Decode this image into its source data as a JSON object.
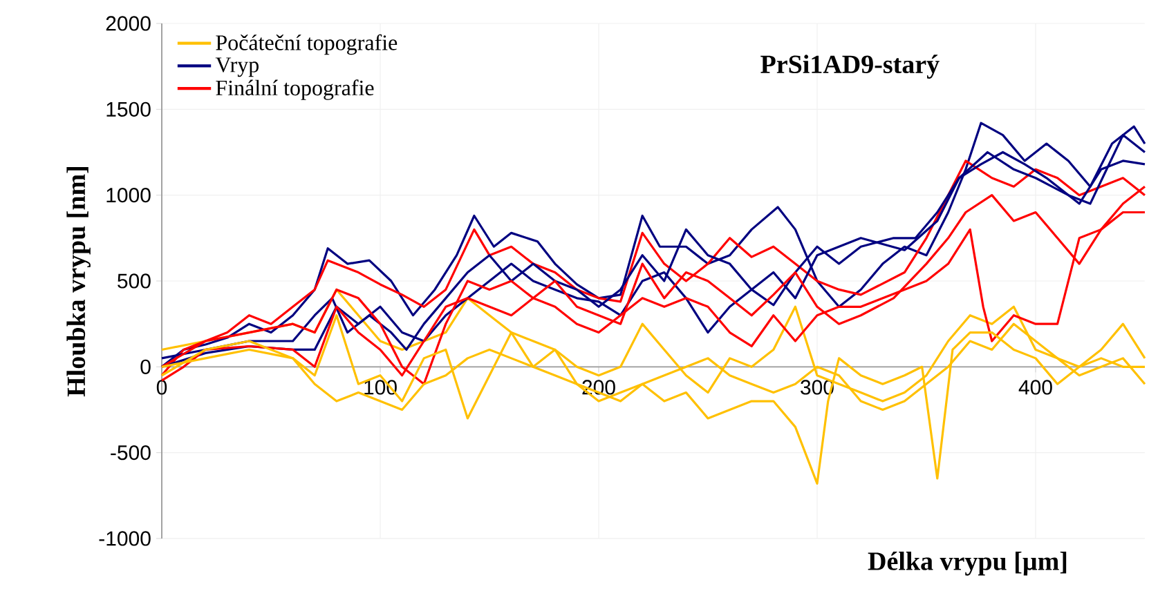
{
  "chart_data": {
    "type": "line",
    "title": "PrSi1AD9-starý",
    "xlabel": "Délka vrypu [µm]",
    "ylabel": "Hloubka vrypu [nm]",
    "xlim": [
      0,
      450
    ],
    "ylim": [
      -1000,
      2000
    ],
    "xticks": [
      0,
      100,
      200,
      300,
      400
    ],
    "yticks": [
      -1000,
      -500,
      0,
      500,
      1000,
      1500,
      2000
    ],
    "grid": true,
    "legend": "top left",
    "marker": "none",
    "line_style": "solid",
    "series": [
      {
        "name": "Počáteční topografie",
        "color": "#ffc000",
        "x": [
          0,
          20,
          40,
          60,
          70,
          80,
          90,
          100,
          110,
          120,
          130,
          140,
          150,
          160,
          170,
          180,
          190,
          200,
          210,
          220,
          230,
          240,
          250,
          260,
          270,
          280,
          290,
          300,
          310,
          320,
          330,
          340,
          350,
          360,
          370,
          380,
          390,
          400,
          410,
          420,
          430,
          440,
          450
        ],
        "values": [
          100,
          150,
          200,
          250,
          200,
          450,
          300,
          150,
          100,
          150,
          200,
          400,
          300,
          200,
          150,
          100,
          0,
          -50,
          0,
          250,
          100,
          -50,
          -150,
          50,
          0,
          100,
          350,
          -50,
          -100,
          -150,
          -200,
          -150,
          -50,
          150,
          300,
          250,
          350,
          100,
          50,
          0,
          100,
          250,
          50
        ]
      },
      {
        "name": "Vryp",
        "color": "#000080",
        "x": [
          0,
          10,
          20,
          30,
          40,
          50,
          60,
          70,
          76,
          85,
          95,
          105,
          115,
          125,
          135,
          143,
          152,
          160,
          172,
          180,
          190,
          200,
          210,
          220,
          228,
          240,
          250,
          260,
          270,
          282,
          290,
          300,
          310,
          320,
          330,
          340,
          350,
          360,
          368,
          375,
          385,
          395,
          405,
          415,
          425,
          435,
          445,
          450
        ],
        "values": [
          0,
          100,
          130,
          170,
          250,
          200,
          300,
          450,
          690,
          600,
          620,
          500,
          300,
          450,
          650,
          880,
          700,
          780,
          730,
          600,
          480,
          400,
          420,
          880,
          700,
          700,
          600,
          650,
          800,
          930,
          800,
          500,
          350,
          450,
          600,
          700,
          650,
          900,
          1150,
          1420,
          1350,
          1200,
          1300,
          1200,
          1050,
          1300,
          1400,
          1300
        ]
      },
      {
        "name": "Finální topografie",
        "color": "#ff0000",
        "x": [
          0,
          10,
          20,
          30,
          40,
          50,
          60,
          70,
          76,
          90,
          100,
          110,
          120,
          130,
          143,
          150,
          160,
          170,
          180,
          190,
          200,
          210,
          220,
          230,
          240,
          250,
          260,
          270,
          280,
          290,
          300,
          310,
          320,
          340,
          350,
          360,
          368,
          380,
          390,
          400,
          410,
          420,
          430,
          440,
          450
        ],
        "values": [
          -50,
          100,
          150,
          200,
          300,
          250,
          350,
          450,
          620,
          550,
          480,
          420,
          350,
          450,
          800,
          650,
          700,
          600,
          550,
          450,
          400,
          380,
          780,
          600,
          500,
          600,
          750,
          640,
          700,
          600,
          500,
          450,
          420,
          550,
          750,
          1000,
          1200,
          1100,
          1050,
          1150,
          1100,
          1000,
          1050,
          1100,
          1000
        ]
      },
      {
        "color": "#000080",
        "x": [
          0,
          20,
          40,
          60,
          70,
          78,
          85,
          95,
          105,
          112,
          120,
          130,
          140,
          150,
          160,
          170,
          180,
          190,
          200,
          210,
          220,
          230,
          240,
          250,
          260,
          270,
          280,
          290,
          300,
          310,
          320,
          335,
          345,
          355,
          365,
          375,
          385,
          395,
          405,
          420,
          430,
          440,
          450
        ],
        "values": [
          50,
          100,
          150,
          150,
          300,
          400,
          200,
          300,
          200,
          100,
          250,
          400,
          550,
          650,
          500,
          600,
          500,
          450,
          350,
          450,
          650,
          500,
          800,
          650,
          600,
          450,
          360,
          550,
          700,
          600,
          700,
          750,
          750,
          900,
          1100,
          1180,
          1250,
          1180,
          1100,
          950,
          1150,
          1200,
          1180
        ]
      },
      {
        "color": "#000080",
        "x": [
          0,
          20,
          40,
          60,
          70,
          80,
          90,
          100,
          110,
          120,
          130,
          140,
          150,
          160,
          170,
          180,
          190,
          200,
          210,
          220,
          230,
          240,
          250,
          260,
          270,
          280,
          290,
          300,
          310,
          320,
          340,
          355,
          365,
          378,
          390,
          400,
          415,
          425,
          440,
          450
        ],
        "values": [
          0,
          80,
          120,
          100,
          100,
          350,
          250,
          350,
          200,
          150,
          300,
          400,
          500,
          600,
          500,
          450,
          400,
          380,
          300,
          500,
          550,
          400,
          200,
          350,
          450,
          550,
          400,
          650,
          700,
          750,
          680,
          850,
          1100,
          1250,
          1150,
          1100,
          1000,
          950,
          1350,
          1250
        ]
      },
      {
        "color": "#ff0000",
        "x": [
          0,
          20,
          40,
          60,
          70,
          80,
          90,
          100,
          110,
          120,
          130,
          140,
          150,
          160,
          170,
          180,
          190,
          200,
          210,
          220,
          230,
          240,
          250,
          260,
          270,
          280,
          290,
          300,
          310,
          320,
          335,
          350,
          360,
          368,
          380,
          390,
          400,
          410,
          420,
          430,
          440,
          450
        ],
        "values": [
          0,
          150,
          200,
          250,
          200,
          450,
          400,
          250,
          0,
          -100,
          250,
          500,
          450,
          500,
          400,
          500,
          350,
          300,
          250,
          600,
          400,
          550,
          500,
          400,
          300,
          420,
          550,
          350,
          250,
          300,
          400,
          600,
          750,
          900,
          1000,
          850,
          900,
          750,
          600,
          800,
          900,
          900
        ]
      },
      {
        "color": "#ff0000",
        "x": [
          0,
          10,
          20,
          40,
          60,
          70,
          80,
          90,
          100,
          110,
          120,
          130,
          140,
          150,
          160,
          170,
          180,
          190,
          200,
          210,
          220,
          230,
          240,
          250,
          260,
          270,
          280,
          290,
          300,
          310,
          320,
          340,
          350,
          360,
          370,
          376,
          380,
          390,
          400,
          410,
          420,
          430,
          440,
          450
        ],
        "values": [
          -80,
          0,
          100,
          120,
          100,
          0,
          350,
          200,
          100,
          -50,
          150,
          350,
          400,
          350,
          300,
          400,
          350,
          250,
          200,
          300,
          400,
          350,
          400,
          350,
          200,
          120,
          300,
          150,
          300,
          350,
          350,
          450,
          500,
          600,
          800,
          350,
          150,
          300,
          250,
          250,
          750,
          800,
          950,
          1050
        ]
      },
      {
        "color": "#ffc000",
        "x": [
          0,
          20,
          40,
          60,
          70,
          80,
          90,
          100,
          110,
          120,
          130,
          140,
          150,
          160,
          170,
          180,
          190,
          200,
          210,
          220,
          230,
          240,
          250,
          260,
          270,
          280,
          290,
          300,
          305,
          310,
          320,
          330,
          340,
          348,
          355,
          362,
          370,
          380,
          390,
          400,
          410,
          420,
          430,
          440,
          450
        ],
        "values": [
          -50,
          100,
          150,
          50,
          -50,
          300,
          -100,
          -50,
          -200,
          50,
          100,
          -300,
          -50,
          200,
          0,
          100,
          -100,
          -150,
          -200,
          -100,
          -200,
          -150,
          -300,
          -250,
          -200,
          -200,
          -350,
          -680,
          -200,
          50,
          -50,
          -100,
          -50,
          0,
          -650,
          100,
          200,
          200,
          100,
          50,
          -100,
          0,
          50,
          0,
          0
        ]
      },
      {
        "color": "#ffc000",
        "x": [
          0,
          20,
          40,
          60,
          70,
          80,
          90,
          100,
          110,
          120,
          130,
          140,
          150,
          160,
          170,
          180,
          190,
          200,
          210,
          220,
          230,
          240,
          250,
          260,
          270,
          280,
          290,
          300,
          310,
          320,
          330,
          340,
          350,
          360,
          370,
          380,
          390,
          400,
          410,
          420,
          430,
          440,
          450
        ],
        "values": [
          0,
          50,
          100,
          50,
          -100,
          -200,
          -150,
          -200,
          -250,
          -100,
          -50,
          50,
          100,
          50,
          0,
          -50,
          -100,
          -200,
          -150,
          -100,
          -50,
          0,
          50,
          -50,
          -100,
          -150,
          -100,
          0,
          -50,
          -200,
          -250,
          -200,
          -100,
          0,
          150,
          100,
          250,
          150,
          50,
          -50,
          0,
          50,
          -100
        ]
      }
    ]
  }
}
